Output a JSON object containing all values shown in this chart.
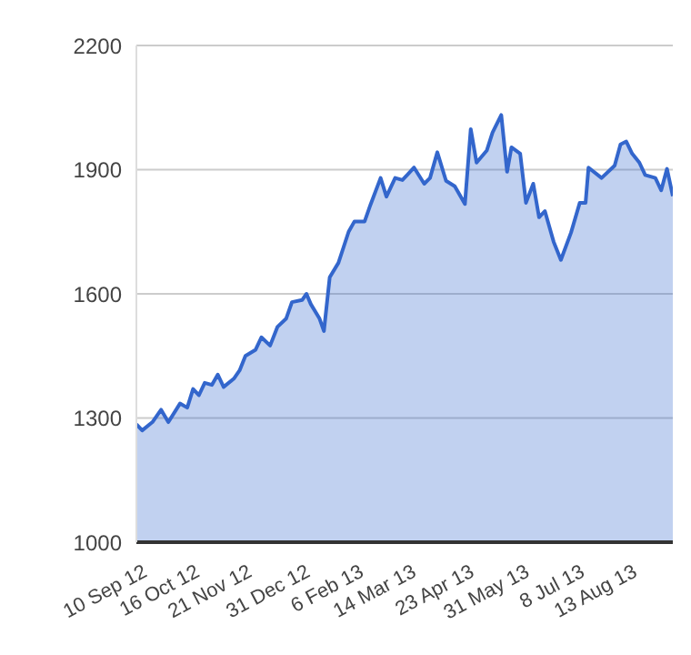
{
  "chart_data": {
    "type": "area",
    "x": [
      "2012-09-06",
      "2012-09-10",
      "2012-09-17",
      "2012-09-23",
      "2012-09-28",
      "2012-10-06",
      "2012-10-11",
      "2012-10-15",
      "2012-10-19",
      "2012-10-23",
      "2012-10-28",
      "2012-11-01",
      "2012-11-05",
      "2012-11-12",
      "2012-11-16",
      "2012-11-20",
      "2012-11-27",
      "2012-12-01",
      "2012-12-07",
      "2012-12-12",
      "2012-12-18",
      "2012-12-22",
      "2012-12-29",
      "2013-01-01",
      "2013-01-04",
      "2013-01-10",
      "2013-01-13",
      "2013-01-17",
      "2013-01-23",
      "2013-01-30",
      "2013-02-03",
      "2013-02-10",
      "2013-02-14",
      "2013-02-21",
      "2013-02-25",
      "2013-03-03",
      "2013-03-08",
      "2013-03-12",
      "2013-03-16",
      "2013-03-23",
      "2013-03-27",
      "2013-04-01",
      "2013-04-07",
      "2013-04-13",
      "2013-04-20",
      "2013-04-24",
      "2013-04-28",
      "2013-05-05",
      "2013-05-09",
      "2013-05-15",
      "2013-05-19",
      "2013-05-22",
      "2013-05-28",
      "2013-06-01",
      "2013-06-06",
      "2013-06-10",
      "2013-06-14",
      "2013-06-20",
      "2013-06-25",
      "2013-07-02",
      "2013-07-08",
      "2013-07-12",
      "2013-07-14",
      "2013-07-23",
      "2013-08-01",
      "2013-08-05",
      "2013-08-09",
      "2013-08-13",
      "2013-08-18",
      "2013-08-22",
      "2013-08-29",
      "2013-09-02",
      "2013-09-06",
      "2013-09-10"
    ],
    "series": [
      {
        "color": "#3366cc",
        "values": [
          1285,
          1270,
          1290,
          1320,
          1290,
          1335,
          1325,
          1370,
          1355,
          1385,
          1380,
          1405,
          1375,
          1395,
          1415,
          1450,
          1465,
          1495,
          1475,
          1520,
          1540,
          1580,
          1585,
          1600,
          1575,
          1540,
          1510,
          1640,
          1675,
          1750,
          1775,
          1775,
          1815,
          1880,
          1835,
          1880,
          1875,
          1890,
          1905,
          1866,
          1880,
          1942,
          1873,
          1860,
          1817,
          1998,
          1917,
          1946,
          1990,
          2032,
          1895,
          1954,
          1939,
          1820,
          1866,
          1785,
          1800,
          1726,
          1682,
          1748,
          1820,
          1820,
          1905,
          1880,
          1910,
          1961,
          1968,
          1939,
          1917,
          1887,
          1880,
          1850,
          1902,
          1836
        ]
      }
    ],
    "xlim": [
      "2012-09-06",
      "2013-09-10"
    ],
    "xticks": [
      {
        "value": "2012-09-10",
        "label": "10 Sep 12"
      },
      {
        "value": "2012-10-16",
        "label": "16 Oct 12"
      },
      {
        "value": "2012-11-21",
        "label": "21 Nov 12"
      },
      {
        "value": "2012-12-31",
        "label": "31 Dec 12"
      },
      {
        "value": "2013-02-06",
        "label": "6 Feb 13"
      },
      {
        "value": "2013-03-14",
        "label": "14 Mar 13"
      },
      {
        "value": "2013-04-23",
        "label": "23 Apr 13"
      },
      {
        "value": "2013-05-31",
        "label": "31 May 13"
      },
      {
        "value": "2013-07-08",
        "label": "8 Jul 13"
      },
      {
        "value": "2013-08-13",
        "label": "13 Aug 13"
      }
    ],
    "ylim": [
      1000,
      2200
    ],
    "yticks": [
      1000,
      1300,
      1600,
      1900,
      2200
    ],
    "grid": "y"
  }
}
